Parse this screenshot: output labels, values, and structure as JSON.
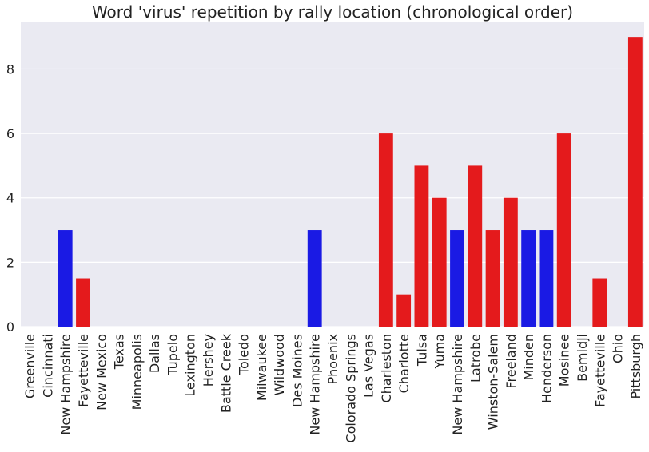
{
  "chart_data": {
    "type": "bar",
    "title": "Word 'virus' repetition by rally location (chronological order)",
    "xlabel": "",
    "ylabel": "",
    "ylim": [
      0,
      9.45
    ],
    "yticks": [
      0,
      2,
      4,
      6,
      8
    ],
    "grid": true,
    "legend": "none",
    "categories": [
      "Greenville",
      "Cincinnati",
      "New Hampshire",
      "Fayetteville",
      "New Mexico",
      "Texas",
      "Minneapolis",
      "Dallas",
      "Tupelo",
      "Lexington",
      "Hershey",
      "Battle Creek",
      "Toledo",
      "Milwaukee",
      "Wildwood",
      "Des Moines",
      "New Hampshire",
      "Phoenix",
      "Colorado Springs",
      "Las Vegas",
      "Charleston",
      "Charlotte",
      "Tulsa",
      "Yuma",
      "New Hampshire",
      "Latrobe",
      "Winston-Salem",
      "Freeland",
      "Minden",
      "Henderson",
      "Mosinee",
      "Bemidji",
      "Fayetteville",
      "Ohio",
      "Pittsburgh"
    ],
    "values": [
      0,
      0,
      3,
      1.5,
      0,
      0,
      0,
      0,
      0,
      0,
      0,
      0,
      0,
      0,
      0,
      0,
      3,
      0,
      0,
      0,
      6,
      1,
      5,
      4,
      3,
      5,
      3,
      4,
      3,
      3,
      6,
      0,
      1.5,
      0,
      9
    ],
    "bar_colors": [
      "#e41a1c",
      "#e41a1c",
      "#1a1ae4",
      "#e41a1c",
      "#e41a1c",
      "#e41a1c",
      "#e41a1c",
      "#e41a1c",
      "#e41a1c",
      "#e41a1c",
      "#e41a1c",
      "#e41a1c",
      "#e41a1c",
      "#e41a1c",
      "#e41a1c",
      "#e41a1c",
      "#1a1ae4",
      "#e41a1c",
      "#e41a1c",
      "#e41a1c",
      "#e41a1c",
      "#e41a1c",
      "#e41a1c",
      "#e41a1c",
      "#1a1ae4",
      "#e41a1c",
      "#e41a1c",
      "#e41a1c",
      "#1a1ae4",
      "#1a1ae4",
      "#e41a1c",
      "#e41a1c",
      "#e41a1c",
      "#e41a1c",
      "#e41a1c"
    ],
    "colors": {
      "red": "#e41a1c",
      "blue": "#1a1ae4",
      "plot_background": "#eaeaf2",
      "grid": "#ffffff"
    }
  }
}
